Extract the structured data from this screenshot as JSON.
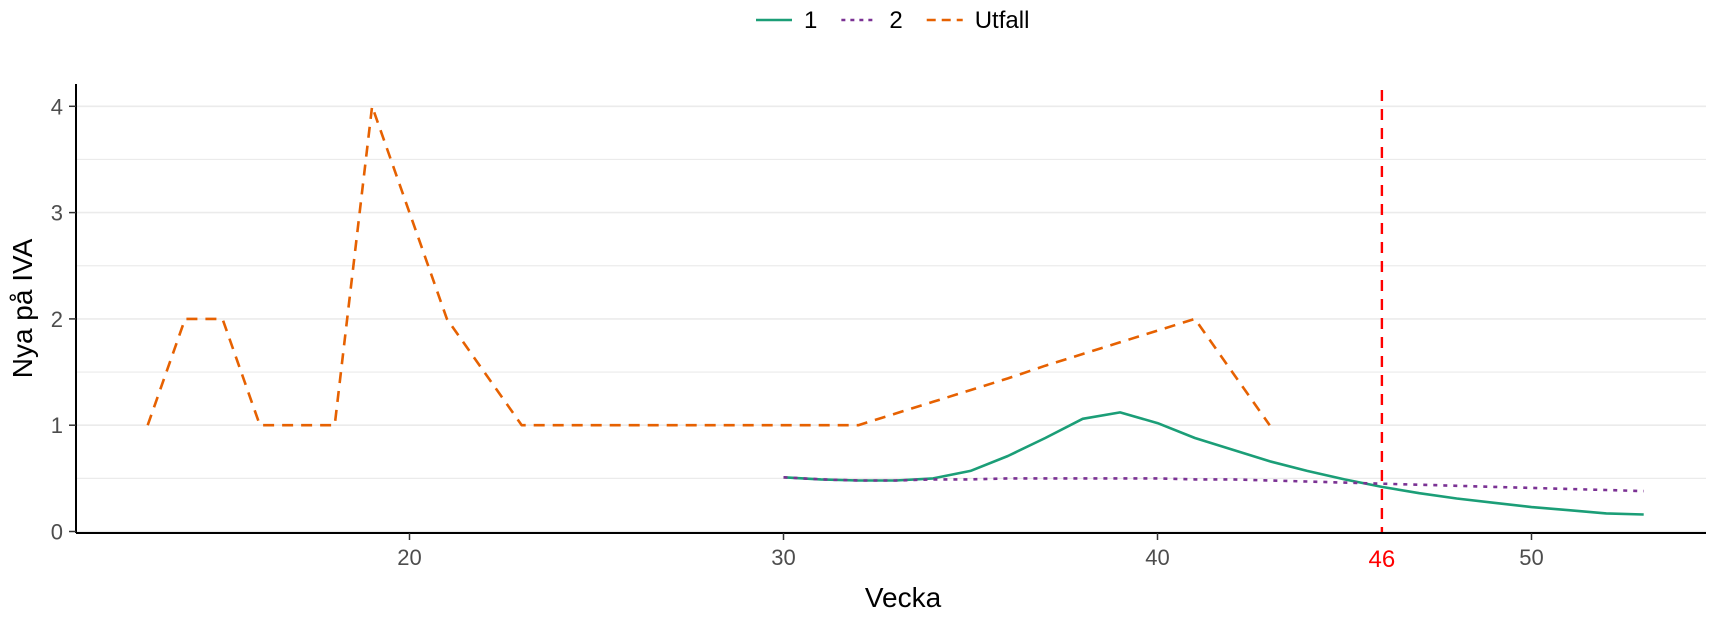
{
  "chart_data": {
    "type": "line",
    "xlabel": "Vecka",
    "ylabel": "Nya på IVA",
    "xlim": [
      11.5,
      55
    ],
    "ylim": [
      -0.05,
      4.2
    ],
    "x_ticks": [
      20,
      30,
      40,
      50
    ],
    "y_ticks": [
      0,
      1,
      2,
      3,
      4
    ],
    "grid": "horizontal",
    "legend": {
      "position": "top"
    },
    "series": [
      {
        "name": "1",
        "color": "#1b9e77",
        "dash": "solid",
        "x": [
          30,
          31,
          32,
          33,
          34,
          35,
          36,
          37,
          38,
          39,
          40,
          41,
          42,
          43,
          44,
          45,
          46,
          47,
          48,
          49,
          50,
          51,
          52,
          53
        ],
        "y": [
          0.51,
          0.49,
          0.48,
          0.48,
          0.5,
          0.57,
          0.71,
          0.88,
          1.06,
          1.12,
          1.02,
          0.88,
          0.77,
          0.66,
          0.57,
          0.49,
          0.42,
          0.36,
          0.31,
          0.27,
          0.23,
          0.2,
          0.17,
          0.16
        ]
      },
      {
        "name": "2",
        "color": "#7b3294",
        "dash": "dotted",
        "x": [
          30,
          31,
          32,
          33,
          34,
          35,
          36,
          37,
          38,
          39,
          40,
          41,
          42,
          43,
          44,
          45,
          46,
          47,
          48,
          49,
          50,
          51,
          52,
          53
        ],
        "y": [
          0.51,
          0.49,
          0.48,
          0.48,
          0.49,
          0.49,
          0.5,
          0.5,
          0.5,
          0.5,
          0.5,
          0.49,
          0.49,
          0.48,
          0.47,
          0.46,
          0.45,
          0.44,
          0.43,
          0.42,
          0.41,
          0.4,
          0.39,
          0.38
        ]
      },
      {
        "name": "Utfall",
        "color": "#e66101",
        "dash": "dashed",
        "x": [
          13,
          14,
          15,
          16,
          17,
          18,
          19,
          20,
          21,
          22,
          23,
          24,
          25,
          26,
          27,
          28,
          29,
          30,
          31,
          32,
          33,
          34,
          35,
          36,
          37,
          38,
          39,
          40,
          41,
          42,
          43
        ],
        "y": [
          1,
          2,
          2,
          1,
          1,
          1,
          4,
          3,
          2,
          1.5,
          1,
          1,
          1,
          1,
          1,
          1,
          1,
          1,
          1,
          1,
          1.11,
          1.22,
          1.33,
          1.44,
          1.56,
          1.67,
          1.78,
          1.89,
          2,
          1.5,
          1
        ]
      }
    ],
    "annotations": [
      {
        "type": "vline",
        "x": 46,
        "label": "46",
        "color": "#ff0000"
      }
    ]
  }
}
